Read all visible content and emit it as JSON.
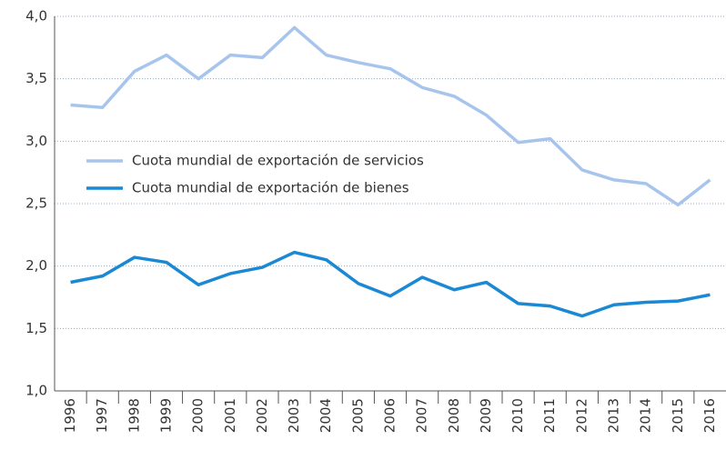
{
  "chart_data": {
    "type": "line",
    "categories": [
      "1996",
      "1997",
      "1998",
      "1999",
      "2000",
      "2001",
      "2002",
      "2003",
      "2004",
      "2005",
      "2006",
      "2007",
      "2008",
      "2009",
      "2010",
      "2011",
      "2012",
      "2013",
      "2014",
      "2015",
      "2016"
    ],
    "series": [
      {
        "name": "Cuota mundial de exportación de servicios",
        "color": "#a7c5ec",
        "values": [
          3.29,
          3.27,
          3.56,
          3.69,
          3.5,
          3.69,
          3.67,
          3.91,
          3.69,
          3.63,
          3.58,
          3.43,
          3.36,
          3.21,
          2.99,
          3.02,
          2.77,
          2.69,
          2.66,
          2.49,
          2.69
        ]
      },
      {
        "name": "Cuota mundial de exportación de bienes",
        "color": "#1a88d2",
        "values": [
          1.87,
          1.92,
          2.07,
          2.03,
          1.85,
          1.94,
          1.99,
          2.11,
          2.05,
          1.86,
          1.76,
          1.91,
          1.81,
          1.87,
          1.7,
          1.68,
          1.6,
          1.69,
          1.71,
          1.72,
          1.77
        ]
      }
    ],
    "ylim": [
      1,
      4
    ],
    "yticks": [
      {
        "value": 1,
        "label": "1,0"
      },
      {
        "value": 1.5,
        "label": "1,5"
      },
      {
        "value": 2,
        "label": "2,0"
      },
      {
        "value": 2.5,
        "label": "2,5"
      },
      {
        "value": 3,
        "label": "3,0"
      },
      {
        "value": 3.5,
        "label": "3,5"
      },
      {
        "value": 4,
        "label": "4,0"
      }
    ],
    "grid": true
  }
}
